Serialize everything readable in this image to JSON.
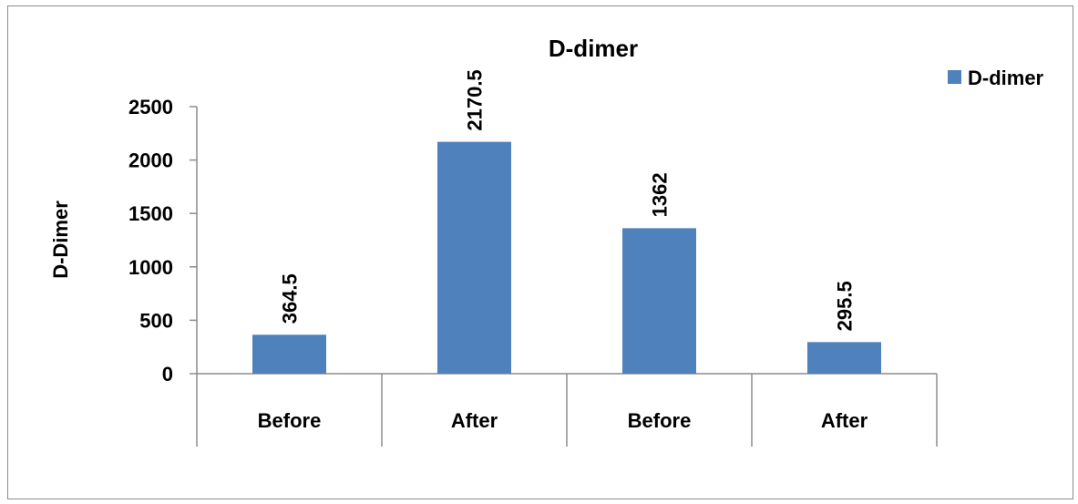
{
  "chart_data": {
    "type": "bar",
    "title": "D-dimer",
    "ylabel": "D-Dimer",
    "xlabel": "",
    "categories": [
      "Before",
      "After",
      "Before",
      "After"
    ],
    "series": [
      {
        "name": "D-dimer",
        "values": [
          364.5,
          2170.5,
          1362,
          295.5
        ],
        "color": "#4f81bd"
      }
    ],
    "data_labels": [
      "364.5",
      "2170.5",
      "1362",
      "295.5"
    ],
    "ylim": [
      0,
      2500
    ],
    "yticks": [
      0,
      500,
      1000,
      1500,
      2000,
      2500
    ],
    "ytick_labels": [
      "0",
      "500",
      "1000",
      "1500",
      "2000",
      "2500"
    ],
    "grid": false,
    "legend_position": "top-right"
  }
}
